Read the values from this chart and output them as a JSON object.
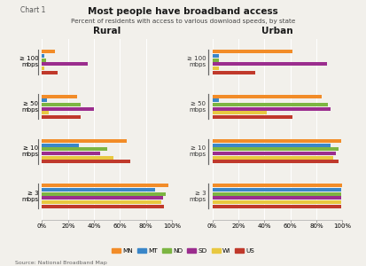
{
  "title": "Most people have broadband access",
  "subtitle": "Percent of residents with access to various download speeds, by state",
  "chart_label": "Chart 1",
  "source": "Source: National Broadband Map",
  "series": [
    "MN",
    "MT",
    "ND",
    "SD",
    "WI",
    "US"
  ],
  "colors": [
    "#F28C28",
    "#3A86C8",
    "#7CB542",
    "#9B2D8E",
    "#E8C840",
    "#C0392B"
  ],
  "rural": {
    ">=3": [
      97,
      87,
      95,
      93,
      92,
      94
    ],
    ">=10": [
      65,
      28,
      50,
      45,
      55,
      68
    ],
    ">=50": [
      27,
      4,
      30,
      40,
      5,
      30
    ],
    ">=100": [
      10,
      2,
      3,
      35,
      2,
      12
    ]
  },
  "urban": {
    ">=3": [
      100,
      99,
      99,
      99,
      99,
      99
    ],
    ">=10": [
      99,
      91,
      97,
      95,
      93,
      97
    ],
    ">=50": [
      84,
      5,
      89,
      91,
      42,
      62
    ],
    ">=100": [
      62,
      5,
      5,
      88,
      5,
      33
    ]
  },
  "cat_keys": [
    ">=3",
    ">=10",
    ">=50",
    ">=100"
  ],
  "cat_labels": [
    "≥ 3\nmbps",
    "≥ 10\nmbps",
    "≥ 50\nmbps",
    "≥ 100\nmbps"
  ],
  "xticks": [
    0,
    20,
    40,
    60,
    80,
    100
  ],
  "xticklabels": [
    "0%",
    "20%",
    "40%",
    "60%",
    "80%",
    "100%"
  ],
  "background_color": "#F2F0EB"
}
